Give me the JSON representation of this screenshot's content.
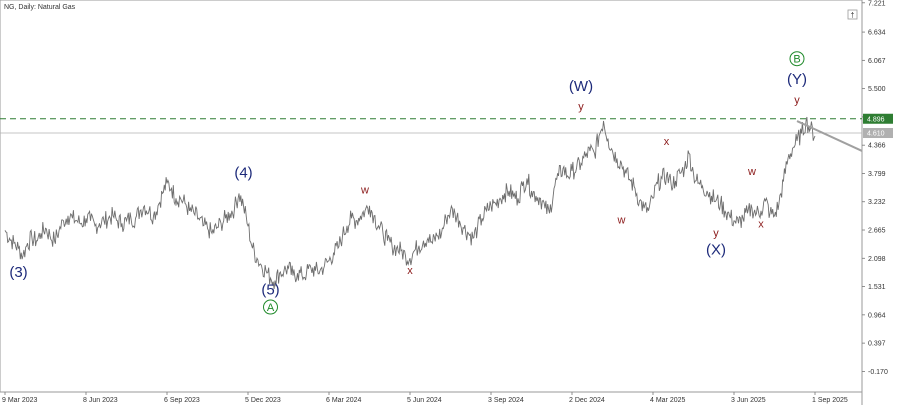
{
  "header": {
    "title": "NG, Daily:  Natural Gas",
    "window_button": "†"
  },
  "chart_data": {
    "type": "line",
    "title": "NG, Daily:  Natural Gas",
    "ylim": [
      -0.6,
      7.221
    ],
    "y_ticks": [
      "7.221",
      "6.634",
      "6.067",
      "5.500",
      "4.933",
      "4.366",
      "3.799",
      "3.232",
      "2.665",
      "2.098",
      "1.531",
      "0.964",
      "0.397",
      "-0.170"
    ],
    "x_ticks": [
      "9 Mar 2023",
      "8 Jun 2023",
      "6 Sep 2023",
      "5 Dec 2023",
      "6 Mar 2024",
      "5 Jun 2024",
      "3 Sep 2024",
      "2 Dec 2024",
      "4 Mar 2025",
      "3 Jun 2025",
      "1 Sep 2025"
    ],
    "x_tick_index": [
      0,
      18,
      36,
      54,
      72,
      90,
      108,
      126,
      144,
      162,
      180
    ],
    "close_series": [
      2.66,
      2.5,
      2.4,
      2.3,
      2.15,
      2.4,
      2.5,
      2.45,
      2.6,
      2.7,
      2.55,
      2.45,
      2.65,
      2.85,
      2.95,
      2.9,
      2.85,
      2.8,
      2.9,
      2.85,
      2.75,
      2.8,
      2.85,
      2.9,
      2.95,
      2.85,
      2.8,
      2.85,
      2.9,
      2.9,
      3.05,
      3.15,
      3.05,
      2.95,
      3.15,
      3.4,
      3.6,
      3.5,
      3.3,
      3.3,
      3.2,
      3.05,
      3.0,
      2.9,
      2.75,
      2.7,
      2.6,
      2.7,
      2.8,
      2.9,
      3.0,
      3.1,
      3.4,
      3.15,
      2.75,
      2.3,
      2.1,
      1.95,
      1.85,
      1.7,
      1.65,
      1.8,
      1.85,
      1.9,
      1.75,
      1.8,
      1.75,
      1.8,
      1.9,
      1.85,
      1.85,
      1.95,
      2.05,
      2.2,
      2.3,
      2.55,
      2.75,
      2.9,
      2.85,
      2.95,
      3.05,
      3.15,
      2.95,
      2.75,
      2.6,
      2.45,
      2.35,
      2.3,
      2.25,
      2.15,
      2.1,
      2.25,
      2.35,
      2.45,
      2.5,
      2.4,
      2.55,
      2.6,
      2.9,
      3.05,
      3.0,
      2.85,
      2.7,
      2.6,
      2.5,
      2.7,
      2.9,
      3.05,
      3.15,
      3.2,
      3.3,
      3.4,
      3.45,
      3.35,
      3.3,
      3.55,
      3.7,
      3.45,
      3.35,
      3.3,
      3.1,
      3.0,
      3.5,
      3.75,
      3.9,
      3.75,
      3.85,
      3.9,
      4.0,
      4.15,
      4.25,
      4.2,
      4.55,
      4.85,
      4.5,
      4.25,
      4.1,
      4.0,
      3.8,
      3.65,
      3.5,
      3.25,
      3.1,
      3.05,
      3.3,
      3.6,
      3.7,
      3.75,
      3.6,
      3.65,
      3.8,
      3.9,
      4.2,
      3.8,
      3.6,
      3.55,
      3.45,
      3.35,
      3.25,
      3.2,
      3.05,
      2.95,
      2.85,
      2.8,
      2.9,
      3.0,
      3.1,
      3.0,
      3.05,
      3.25,
      3.0,
      2.95,
      3.2,
      3.65,
      4.1,
      4.3,
      4.45,
      4.6,
      4.85,
      4.7,
      4.55
    ]
  },
  "price_lines": {
    "level_dashed": "4.896",
    "level_current": "4.610"
  },
  "wave_labels": [
    {
      "text": "(3)",
      "kind": "big",
      "i": 3,
      "v": 1.72,
      "name": "wave-label-3"
    },
    {
      "text": "(4)",
      "kind": "big",
      "i": 53,
      "v": 3.72,
      "name": "wave-label-4"
    },
    {
      "text": "(5)",
      "kind": "big",
      "i": 59,
      "v": 1.37,
      "name": "wave-label-5"
    },
    {
      "text": "A",
      "kind": "circ",
      "i": 59,
      "v": 1.04,
      "name": "wave-label-A"
    },
    {
      "text": "w",
      "kind": "small",
      "i": 80,
      "v": 3.4,
      "name": "wave-label-w-1"
    },
    {
      "text": "x",
      "kind": "small",
      "i": 90,
      "v": 1.78,
      "name": "wave-label-x-1"
    },
    {
      "text": "(W)",
      "kind": "big",
      "i": 128,
      "v": 5.45,
      "name": "wave-label-W"
    },
    {
      "text": "y",
      "kind": "small",
      "i": 128,
      "v": 5.07,
      "name": "wave-label-y-1"
    },
    {
      "text": "x",
      "kind": "small",
      "i": 147,
      "v": 4.37,
      "name": "wave-label-x-2"
    },
    {
      "text": "w",
      "kind": "small",
      "i": 137,
      "v": 2.8,
      "name": "wave-label-w-2"
    },
    {
      "text": "y",
      "kind": "small",
      "i": 158,
      "v": 2.53,
      "name": "wave-label-y-2"
    },
    {
      "text": "(X)",
      "kind": "big",
      "i": 158,
      "v": 2.17,
      "name": "wave-label-X"
    },
    {
      "text": "w",
      "kind": "small",
      "i": 166,
      "v": 3.77,
      "name": "wave-label-w-3"
    },
    {
      "text": "x",
      "kind": "small",
      "i": 168,
      "v": 2.72,
      "name": "wave-label-x-3"
    },
    {
      "text": "B",
      "kind": "circ",
      "i": 176,
      "v": 6.02,
      "name": "wave-label-B"
    },
    {
      "text": "(Y)",
      "kind": "big",
      "i": 176,
      "v": 5.59,
      "name": "wave-label-Y"
    },
    {
      "text": "y",
      "kind": "small",
      "i": 176,
      "v": 5.2,
      "name": "wave-label-y-3"
    }
  ],
  "forecast": {
    "from_i": 176,
    "from_v": 4.85,
    "to_v": 4.25
  },
  "colors": {
    "price": "#6e6e6e",
    "dashed_level": "#2e7d32",
    "current_level": "#b0b0b0",
    "forecast": "#a0a0a0",
    "wave_blue": "#1d2a7a",
    "wave_red": "#8b1a1a",
    "wave_green": "#1f8a2a"
  }
}
